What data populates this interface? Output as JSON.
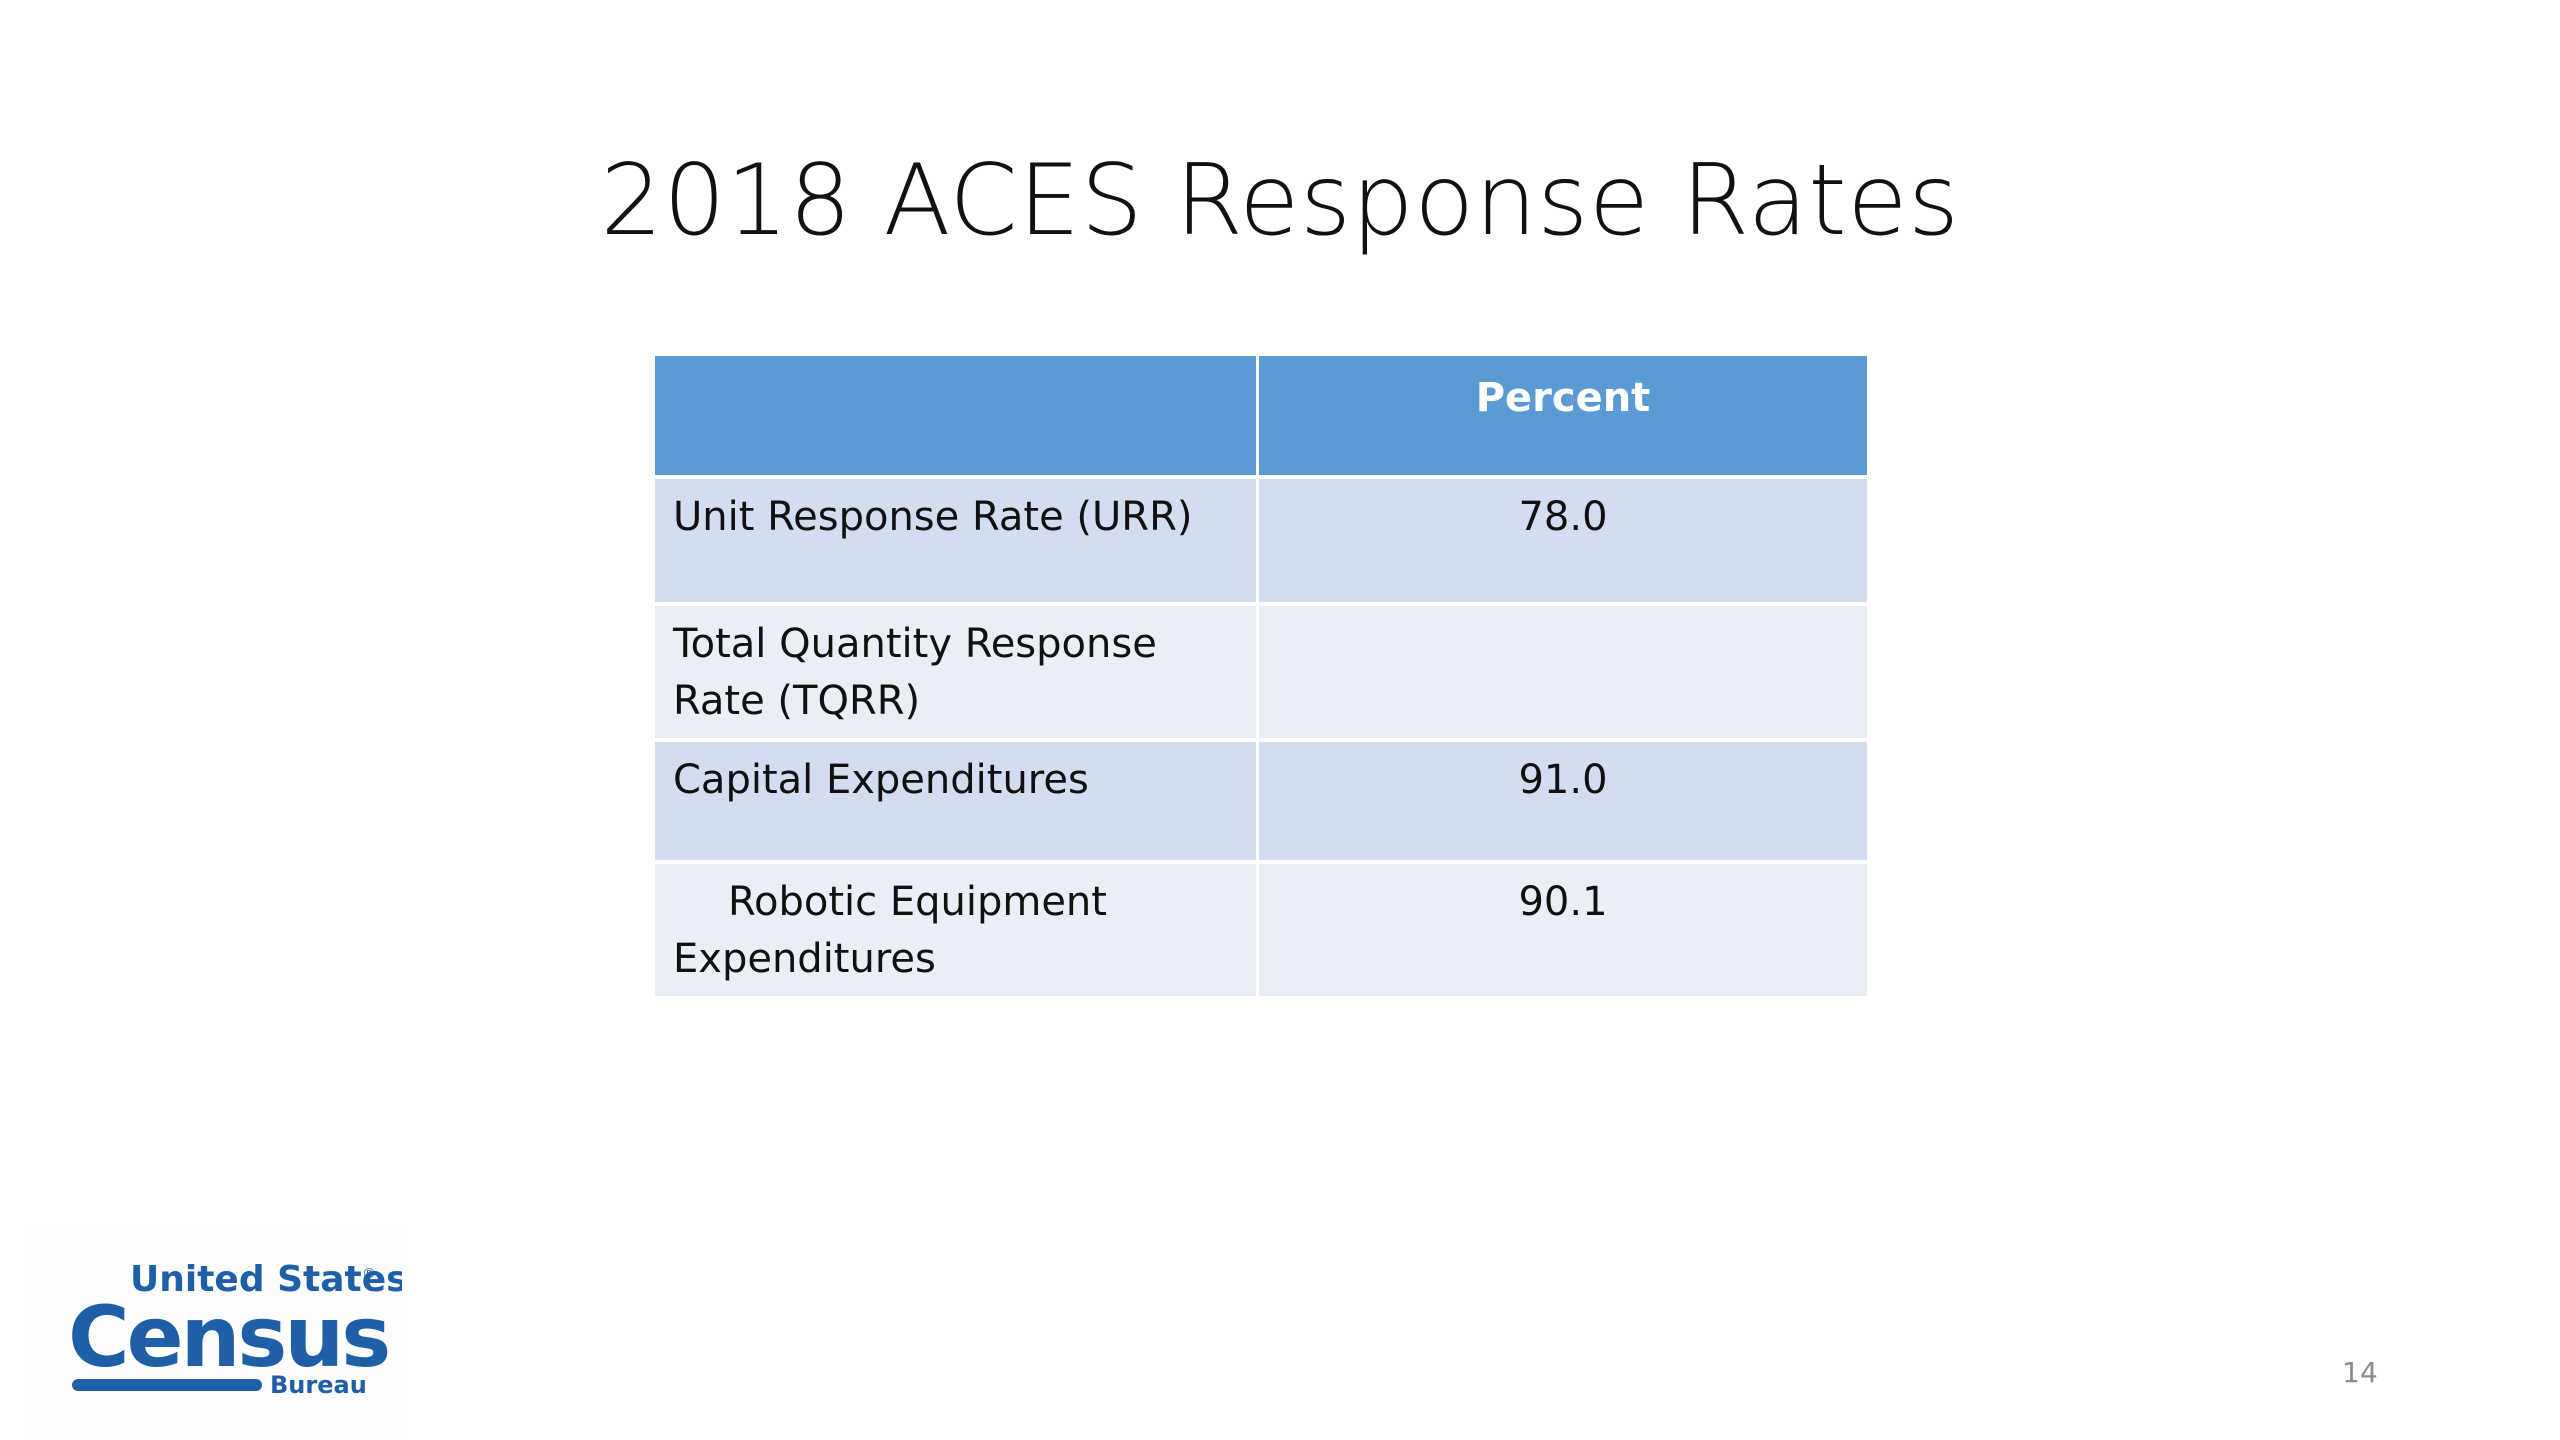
{
  "slide": {
    "title": "2018 ACES Response Rates",
    "page_number": "14"
  },
  "table": {
    "header": [
      "",
      "Percent"
    ],
    "rows": [
      {
        "label": "Unit Response Rate (URR)",
        "value": "78.0"
      },
      {
        "label": "Total Quantity Response Rate (TQRR)",
        "value": ""
      },
      {
        "label": "Capital Expenditures",
        "value": "91.0"
      },
      {
        "label": "Robotic Equipment Expenditures",
        "value": "90.1"
      }
    ]
  },
  "logo": {
    "line1": "United States",
    "registered": "®",
    "line2": "Census",
    "line3": "Bureau",
    "color": "#1f5fa8"
  },
  "colors": {
    "header_bg": "#5b9bd5",
    "row_dark": "#d2deef",
    "row_light": "#eaeff7"
  }
}
